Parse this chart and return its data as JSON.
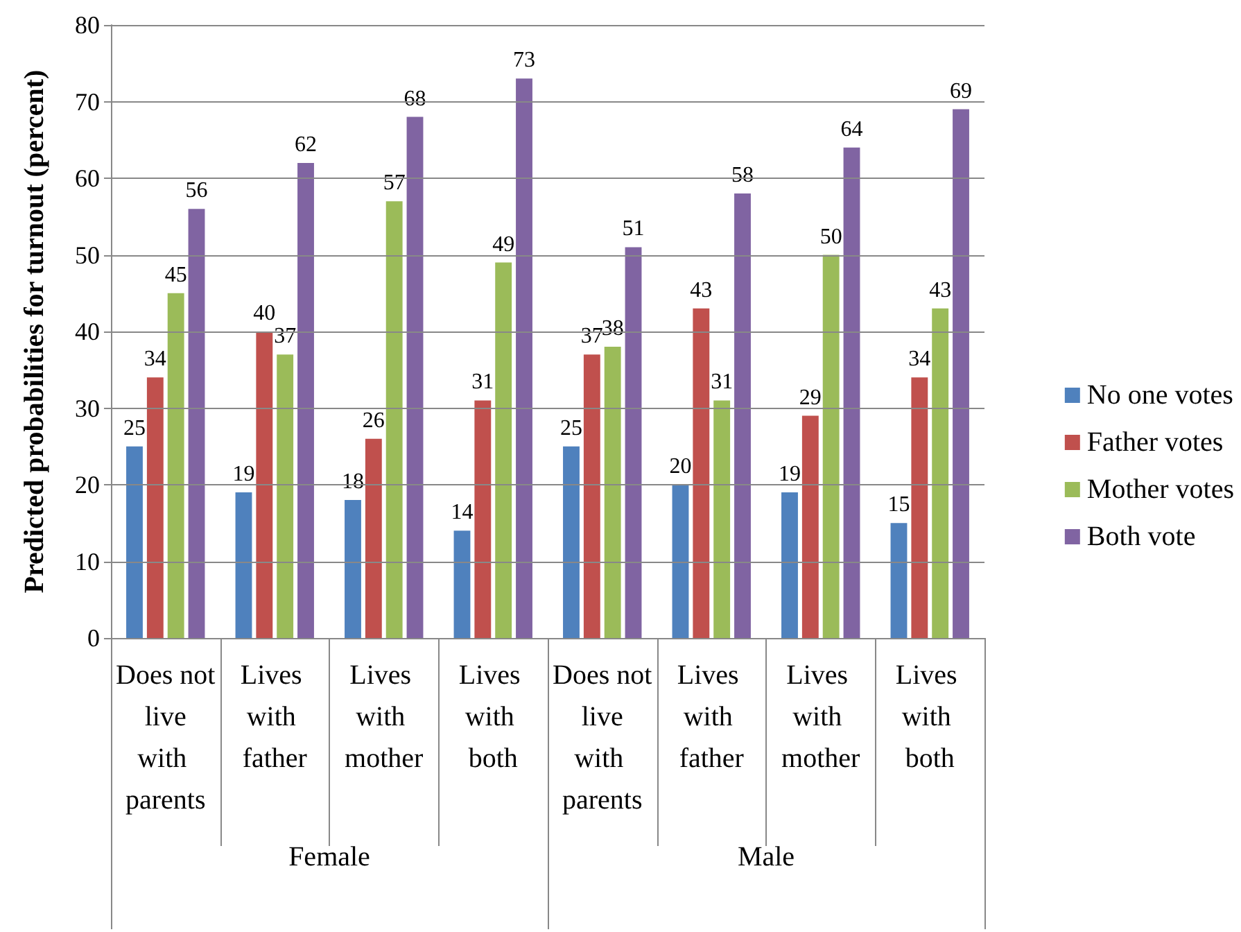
{
  "chart_data": {
    "type": "bar",
    "ylabel": "Predicted probabilities for turnout (percent)",
    "categories": [
      "Does not live with parents",
      "Lives with father",
      "Lives with mother",
      "Lives with both",
      "Does not live with parents",
      "Lives with father",
      "Lives with mother",
      "Lives with both"
    ],
    "annotations": [
      "Female",
      "Male"
    ],
    "series": [
      {
        "name": "No one votes",
        "color": "#4f81bd",
        "values": [
          25,
          19,
          18,
          14,
          25,
          20,
          19,
          15
        ]
      },
      {
        "name": "Father votes",
        "color": "#c0504d",
        "values": [
          34,
          40,
          26,
          31,
          37,
          43,
          29,
          34
        ]
      },
      {
        "name": "Mother votes",
        "color": "#9bbb59",
        "values": [
          45,
          37,
          57,
          49,
          38,
          31,
          50,
          43
        ]
      },
      {
        "name": "Both vote",
        "color": "#8064a2",
        "values": [
          56,
          62,
          68,
          73,
          51,
          58,
          64,
          69
        ]
      }
    ],
    "ylim": [
      0,
      80
    ],
    "yticks": [
      0,
      10,
      20,
      30,
      40,
      50,
      60,
      70,
      80
    ],
    "grid": "y",
    "legend": "right",
    "data_labels": true
  }
}
